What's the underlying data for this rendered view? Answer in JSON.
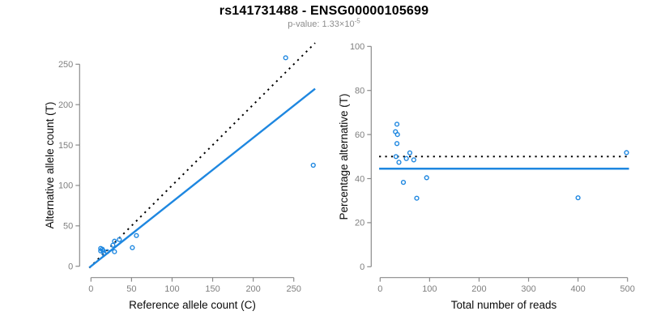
{
  "header": {
    "title": "rs141731488 - ENSG00000105699",
    "pvalue_prefix": "p-value: 1.33×10",
    "pvalue_exponent": "-5"
  },
  "colors": {
    "accent_blue": "#1e87e0",
    "line_black": "#000000",
    "axis_gray": "#8a8a8a",
    "tick_label_gray": "#7f7f7f",
    "axis_title_black": "#0a0a0a"
  },
  "chart_data": [
    {
      "type": "scatter",
      "name": "allele-counts",
      "xlabel": "Reference allele count (C)",
      "ylabel": "Alternative allele count (T)",
      "xlim": [
        0,
        250
      ],
      "ylim": [
        0,
        250
      ],
      "xticks": [
        0,
        50,
        100,
        150,
        200,
        250
      ],
      "yticks": [
        0,
        50,
        100,
        150,
        200,
        250
      ],
      "grid": false,
      "marker": "open-circle",
      "points": [
        [
          12,
          22
        ],
        [
          12,
          19
        ],
        [
          14,
          21
        ],
        [
          15,
          19
        ],
        [
          16,
          16
        ],
        [
          20,
          18
        ],
        [
          27,
          26
        ],
        [
          29,
          31
        ],
        [
          29,
          18
        ],
        [
          35,
          33
        ],
        [
          51,
          23
        ],
        [
          56,
          38
        ],
        [
          240,
          258
        ],
        [
          274,
          125
        ]
      ],
      "lines": [
        {
          "name": "identity-line",
          "style": "dotted",
          "color": "black",
          "slope": 1,
          "intercept": 0
        },
        {
          "name": "regression-line",
          "style": "solid",
          "color": "blue",
          "slope": 0.795,
          "intercept": 0
        }
      ]
    },
    {
      "type": "scatter",
      "name": "percentage-vs-reads",
      "xlabel": "Total number of reads",
      "ylabel": "Percentage alternative (T)",
      "xlim": [
        0,
        500
      ],
      "ylim": [
        0,
        100
      ],
      "xticks": [
        0,
        100,
        200,
        300,
        400,
        500
      ],
      "yticks": [
        0,
        20,
        40,
        60,
        80,
        100
      ],
      "grid": false,
      "marker": "open-circle",
      "points": [
        [
          34,
          64.7
        ],
        [
          31,
          61.3
        ],
        [
          35,
          60.0
        ],
        [
          34,
          55.9
        ],
        [
          32,
          50.0
        ],
        [
          38,
          47.4
        ],
        [
          53,
          49.1
        ],
        [
          60,
          51.7
        ],
        [
          47,
          38.3
        ],
        [
          68,
          48.5
        ],
        [
          74,
          31.1
        ],
        [
          94,
          40.4
        ],
        [
          400,
          31.3
        ],
        [
          498,
          51.8
        ]
      ],
      "lines": [
        {
          "name": "expected-50pct-line",
          "style": "dotted",
          "color": "black",
          "slope": 0,
          "intercept": 50
        },
        {
          "name": "mean-percentage-line",
          "style": "solid",
          "color": "blue",
          "slope": 0,
          "intercept": 44.5
        }
      ]
    }
  ]
}
